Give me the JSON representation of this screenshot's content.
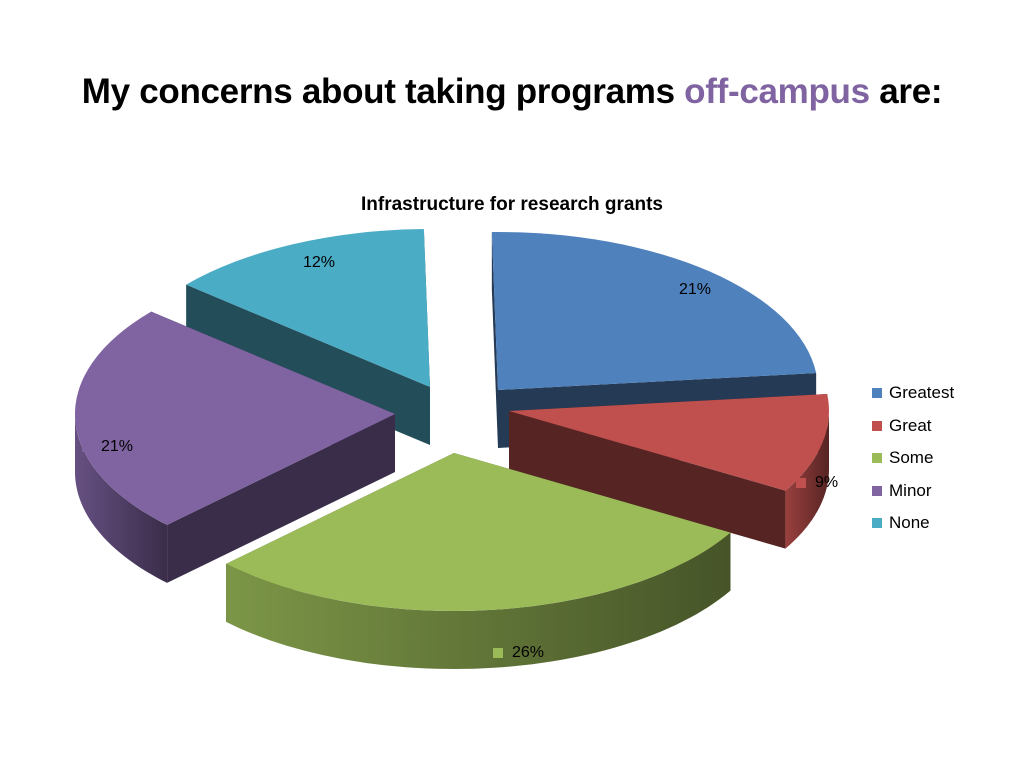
{
  "slide": {
    "title_prefix": "My concerns about taking programs ",
    "title_accent": "off-campus",
    "title_suffix": " are:",
    "accent_color": "#8064a2"
  },
  "chart_data": {
    "type": "pie",
    "style": "3d-exploded",
    "title": "Infrastructure for research grants",
    "legend_position": "right",
    "series": [
      {
        "name": "Greatest",
        "value": 21,
        "label": "21%",
        "color": "#4f81bd"
      },
      {
        "name": "Great",
        "value": 9,
        "label": "9%",
        "color": "#c0504d"
      },
      {
        "name": "Some",
        "value": 26,
        "label": "26%",
        "color": "#9bbb59"
      },
      {
        "name": "Minor",
        "value": 21,
        "label": "21%",
        "color": "#8064a2"
      },
      {
        "name": "None",
        "value": 12,
        "label": "12%",
        "color": "#4bacc6"
      }
    ]
  }
}
